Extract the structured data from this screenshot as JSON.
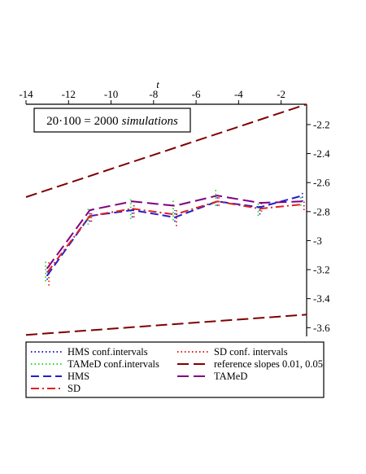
{
  "chart_data": {
    "type": "line",
    "title": "",
    "xlabel": "t",
    "ylabel": "",
    "xlim": [
      -14,
      -0.8
    ],
    "ylim": [
      -3.66,
      -2.06
    ],
    "x_ticks": [
      -14,
      -12,
      -10,
      -8,
      -6,
      -4,
      -2
    ],
    "x_tick_labels": [
      "-14",
      "-12",
      "-10",
      "-8",
      "-6",
      "-4",
      "-2"
    ],
    "y_ticks": [
      -2.2,
      -2.4,
      -2.6,
      -2.8,
      -3,
      -3.2,
      -3.4,
      -3.6
    ],
    "y_tick_labels": [
      "-2.2",
      "-2.4",
      "-2.6",
      "-2.8",
      "-3",
      "-3.2",
      "-3.4",
      "-3.6"
    ],
    "annotation": {
      "formula": "20·100 = 2000",
      "emphasis": "simulations"
    },
    "x": [
      -13,
      -11,
      -9,
      -7,
      -5,
      -3,
      -1
    ],
    "series": [
      {
        "name": "HMS conf.intervals",
        "color": "#2020d0",
        "dash": "dotted",
        "kind": "intervals",
        "lower": [
          -3.27,
          -2.87,
          -2.84,
          -2.87,
          -2.76,
          -2.82,
          -2.73
        ],
        "upper": [
          -3.18,
          -2.79,
          -2.77,
          -2.79,
          -2.7,
          -2.75,
          -2.66
        ]
      },
      {
        "name": "SD conf. intervals",
        "color": "#e02020",
        "dash": "dotted",
        "kind": "intervals",
        "lower": [
          -3.31,
          -2.87,
          -2.84,
          -2.9,
          -2.76,
          -2.8,
          -2.79
        ],
        "upper": [
          -3.15,
          -2.79,
          -2.75,
          -2.79,
          -2.7,
          -2.74,
          -2.72
        ]
      },
      {
        "name": "TAMeD conf.intervals",
        "color": "#20e020",
        "dash": "dotted",
        "kind": "intervals",
        "lower": [
          -3.28,
          -2.89,
          -2.85,
          -2.86,
          -2.76,
          -2.83,
          -2.76
        ],
        "upper": [
          -3.13,
          -2.77,
          -2.71,
          -2.72,
          -2.65,
          -2.73,
          -2.69
        ]
      },
      {
        "name": "reference slopes 0.01, 0.05",
        "color": "#800000",
        "dash": "longdash",
        "kind": "reference",
        "lines": [
          {
            "x": [
              -14,
              -0.8
            ],
            "y": [
              -2.7,
              -2.06
            ]
          },
          {
            "x": [
              -14,
              -0.8
            ],
            "y": [
              -3.65,
              -3.51
            ]
          }
        ]
      },
      {
        "name": "HMS",
        "color": "#2020d0",
        "dash": "dash",
        "kind": "line",
        "values": [
          -3.24,
          -2.83,
          -2.79,
          -2.84,
          -2.73,
          -2.77,
          -2.69
        ]
      },
      {
        "name": "TAMeD",
        "color": "#800080",
        "dash": "longdash",
        "kind": "line",
        "values": [
          -3.19,
          -2.79,
          -2.73,
          -2.76,
          -2.69,
          -2.74,
          -2.73
        ]
      },
      {
        "name": "SD",
        "color": "#e02020",
        "dash": "dashdot",
        "kind": "line",
        "values": [
          -3.22,
          -2.83,
          -2.78,
          -2.82,
          -2.73,
          -2.78,
          -2.75
        ]
      }
    ],
    "legend": {
      "placement": "bottom-left",
      "columns": [
        [
          "HMS conf.intervals",
          "TAMeD conf.intervals",
          "HMS",
          "SD"
        ],
        [
          "SD conf. intervals",
          "reference slopes 0.01, 0.05",
          "TAMeD"
        ]
      ]
    },
    "grid": false
  }
}
